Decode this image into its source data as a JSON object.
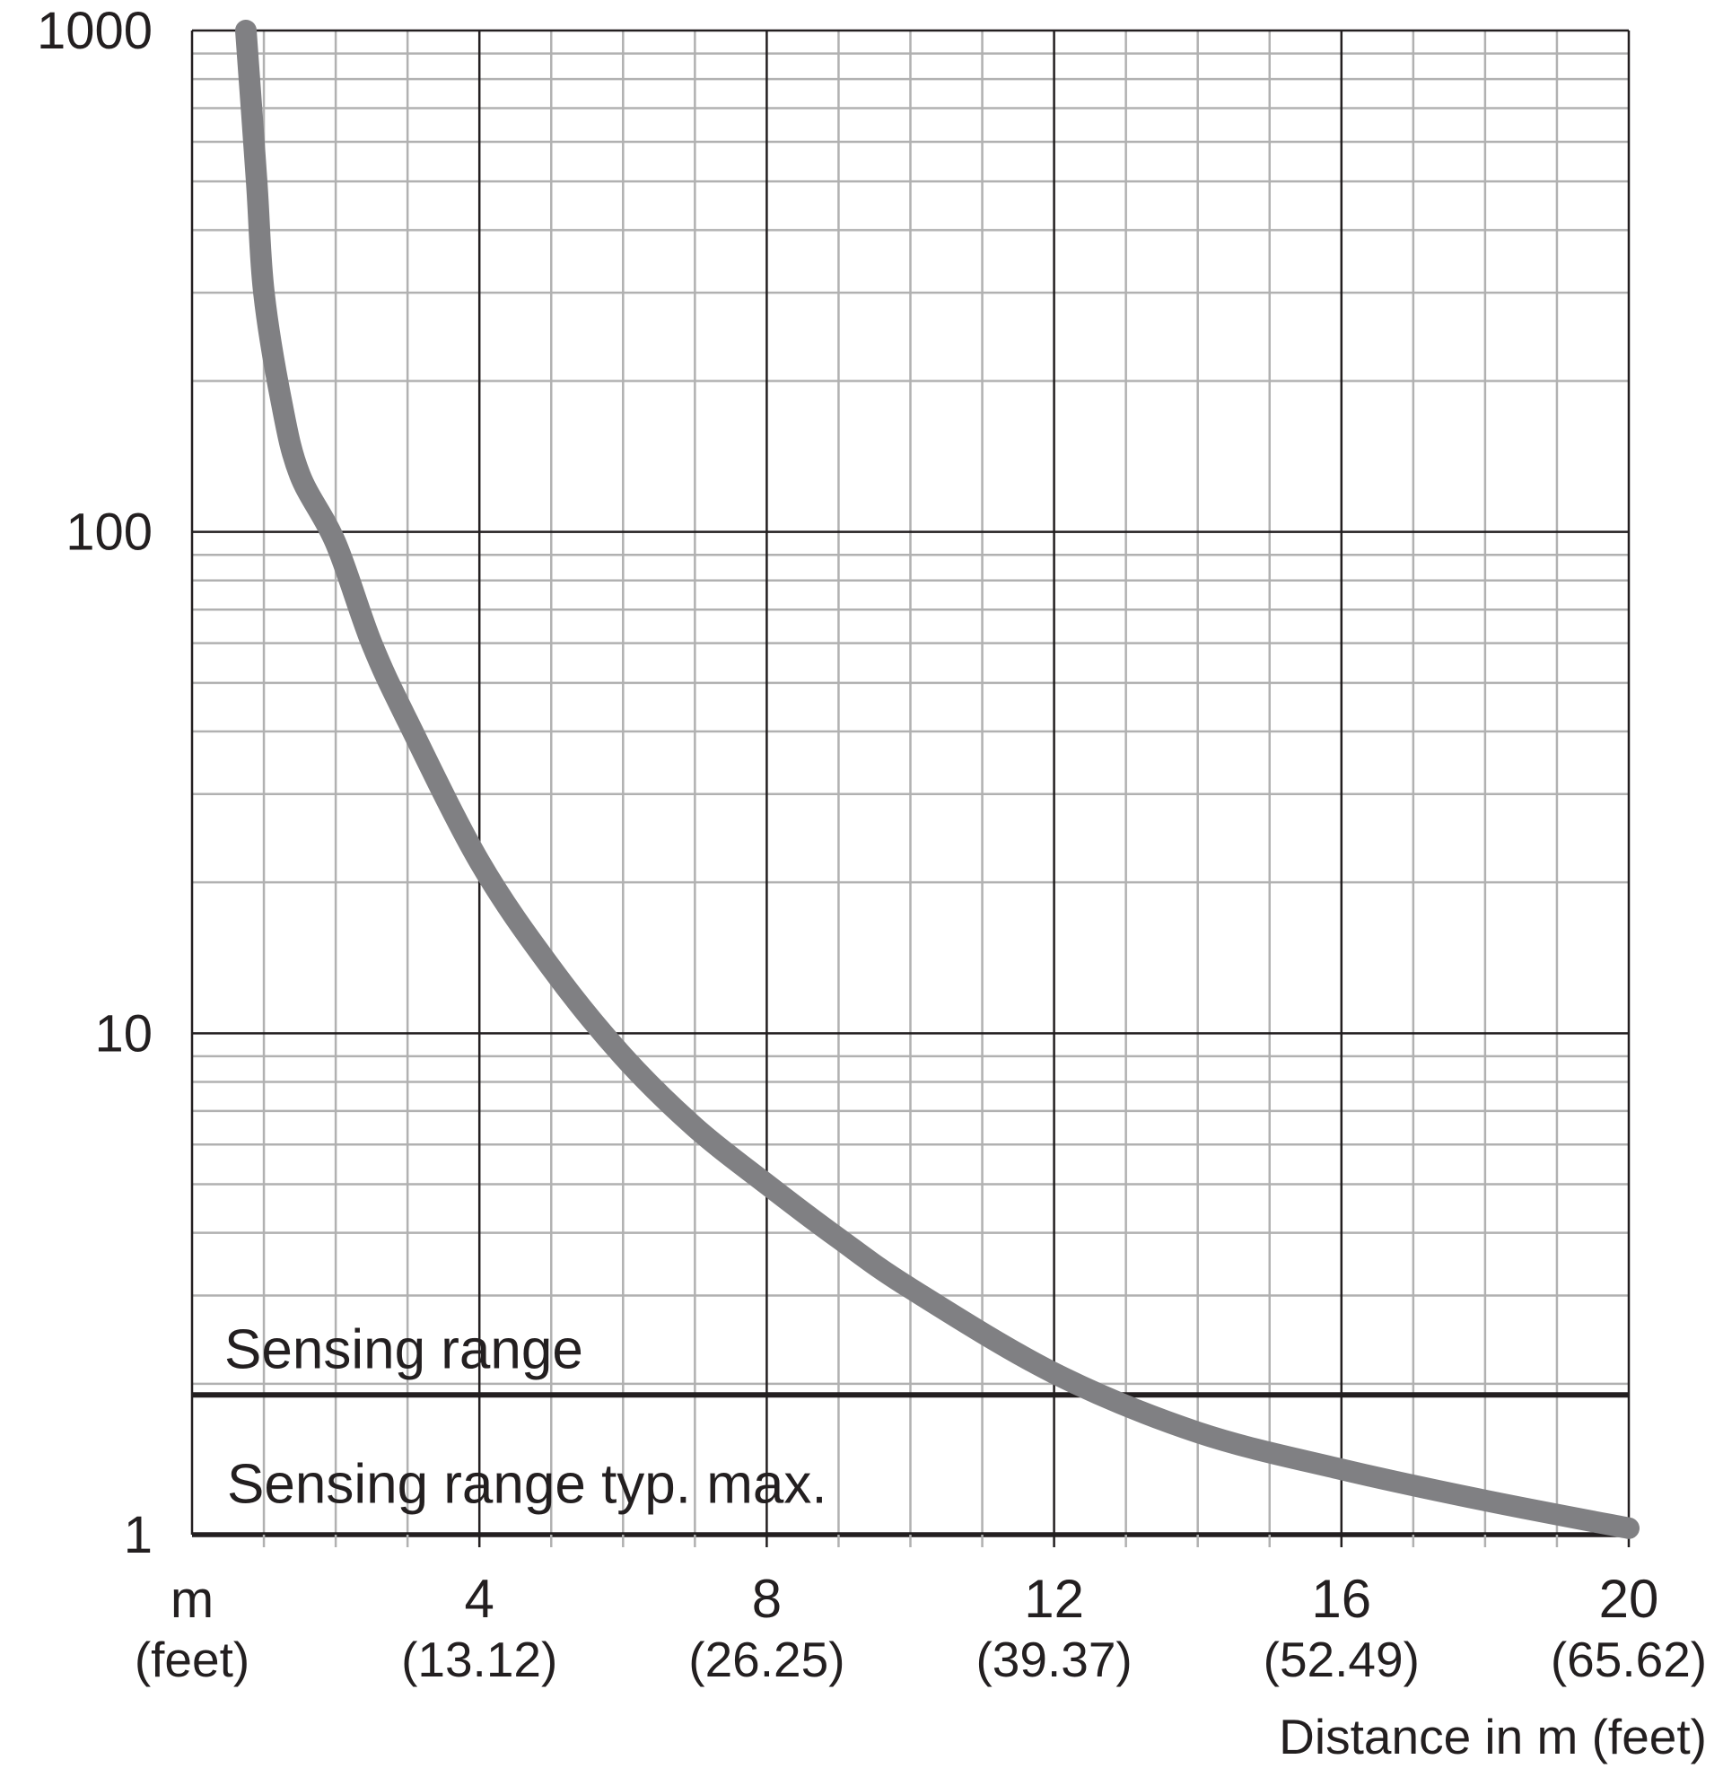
{
  "chart_data": {
    "type": "line",
    "title": "",
    "xlabel": "Distance in m (feet)",
    "ylabel": "",
    "x_unit_label": "m",
    "x_unit_sub_label": "(feet)",
    "x_ticks": [
      {
        "value": 4,
        "label": "4",
        "sub_label": "(13.12)"
      },
      {
        "value": 8,
        "label": "8",
        "sub_label": "(26.25)"
      },
      {
        "value": 12,
        "label": "12",
        "sub_label": "(39.37)"
      },
      {
        "value": 16,
        "label": "16",
        "sub_label": "(52.49)"
      },
      {
        "value": 20,
        "label": "20",
        "sub_label": "(65.62)"
      }
    ],
    "y_ticks": [
      {
        "value": 1,
        "label": "1"
      },
      {
        "value": 10,
        "label": "10"
      },
      {
        "value": 100,
        "label": "100"
      },
      {
        "value": 1000,
        "label": "1000"
      }
    ],
    "xlim": [
      0,
      20
    ],
    "ylim": [
      1,
      1000
    ],
    "y_scale": "log",
    "grid": true,
    "series": [
      {
        "x": [
          0.75,
          0.9,
          1.0,
          1.25,
          1.5,
          2.0,
          2.5,
          3.0,
          4.0,
          5.0,
          6.0,
          7.0,
          8.0,
          9.0,
          10.0,
          12.0,
          14.0,
          16.0,
          18.0,
          20.0
        ],
        "y": [
          1000,
          500,
          300,
          180,
          130,
          95,
          60,
          42,
          22,
          13.5,
          9,
          6.5,
          5,
          3.9,
          3.1,
          2.1,
          1.6,
          1.35,
          1.17,
          1.03
        ]
      }
    ],
    "annotations": [
      {
        "text": "Sensing range",
        "y_value": 1.9
      },
      {
        "text": "Sensing range typ. max.",
        "y_value": 1.9
      }
    ],
    "colors": {
      "curve": "#808083",
      "grid_major": "#231f20",
      "grid_minor": "#b1b1b1"
    }
  }
}
